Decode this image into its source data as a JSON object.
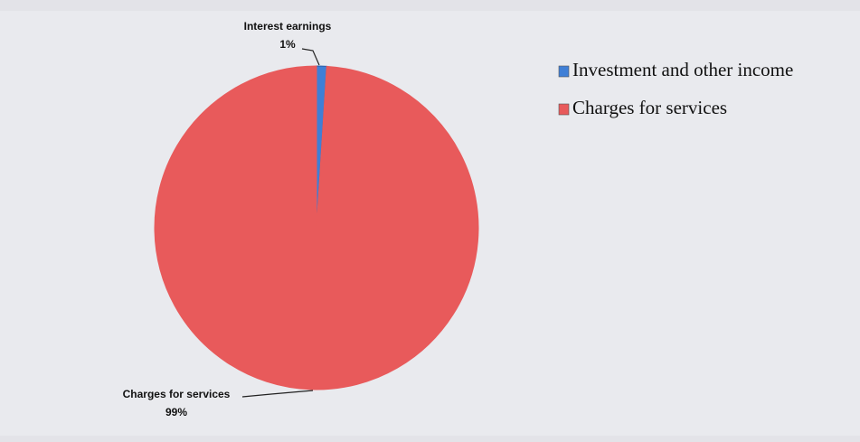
{
  "chart_data": {
    "type": "pie",
    "categories": [
      "Investment and other income",
      "Charges for services"
    ],
    "labels": [
      "Interest earnings",
      "Charges for services"
    ],
    "values": [
      1,
      99
    ],
    "value_labels": [
      "1%",
      "99%"
    ],
    "colors": [
      "#3f7fd6",
      "#e85a5b"
    ],
    "legend": "right"
  }
}
